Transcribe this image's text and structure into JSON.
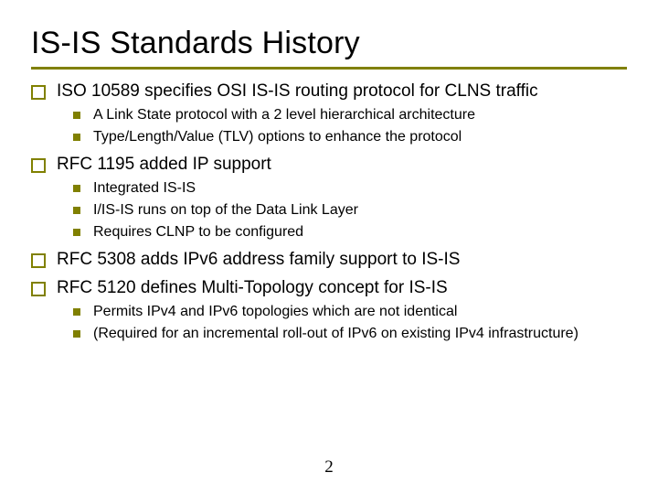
{
  "title": "IS-IS Standards History",
  "title_fontsize": 34,
  "title_underline_color": "#808000",
  "bullet_lvl1_color": "#808000",
  "bullet_lvl2_color": "#808000",
  "background_color": "#ffffff",
  "text_color": "#000000",
  "body_fontsize": 19,
  "sub_fontsize": 16,
  "page_number": "2",
  "items": [
    {
      "text": "ISO 10589 specifies OSI IS-IS routing protocol for CLNS traffic",
      "sub": [
        "A Link State protocol with a 2 level hierarchical architecture",
        "Type/Length/Value (TLV) options to enhance the protocol"
      ]
    },
    {
      "text": "RFC 1195 added IP support",
      "sub": [
        "Integrated IS-IS",
        "I/IS-IS runs on top of the Data Link Layer",
        "Requires CLNP to be configured"
      ]
    },
    {
      "text": "RFC 5308 adds IPv6 address family support to IS-IS",
      "sub": []
    },
    {
      "text": "RFC 5120 defines Multi-Topology concept for IS-IS",
      "sub": [
        "Permits IPv4 and IPv6 topologies which are not identical",
        "(Required for an incremental roll-out of IPv6 on existing IPv4 infrastructure)"
      ]
    }
  ]
}
